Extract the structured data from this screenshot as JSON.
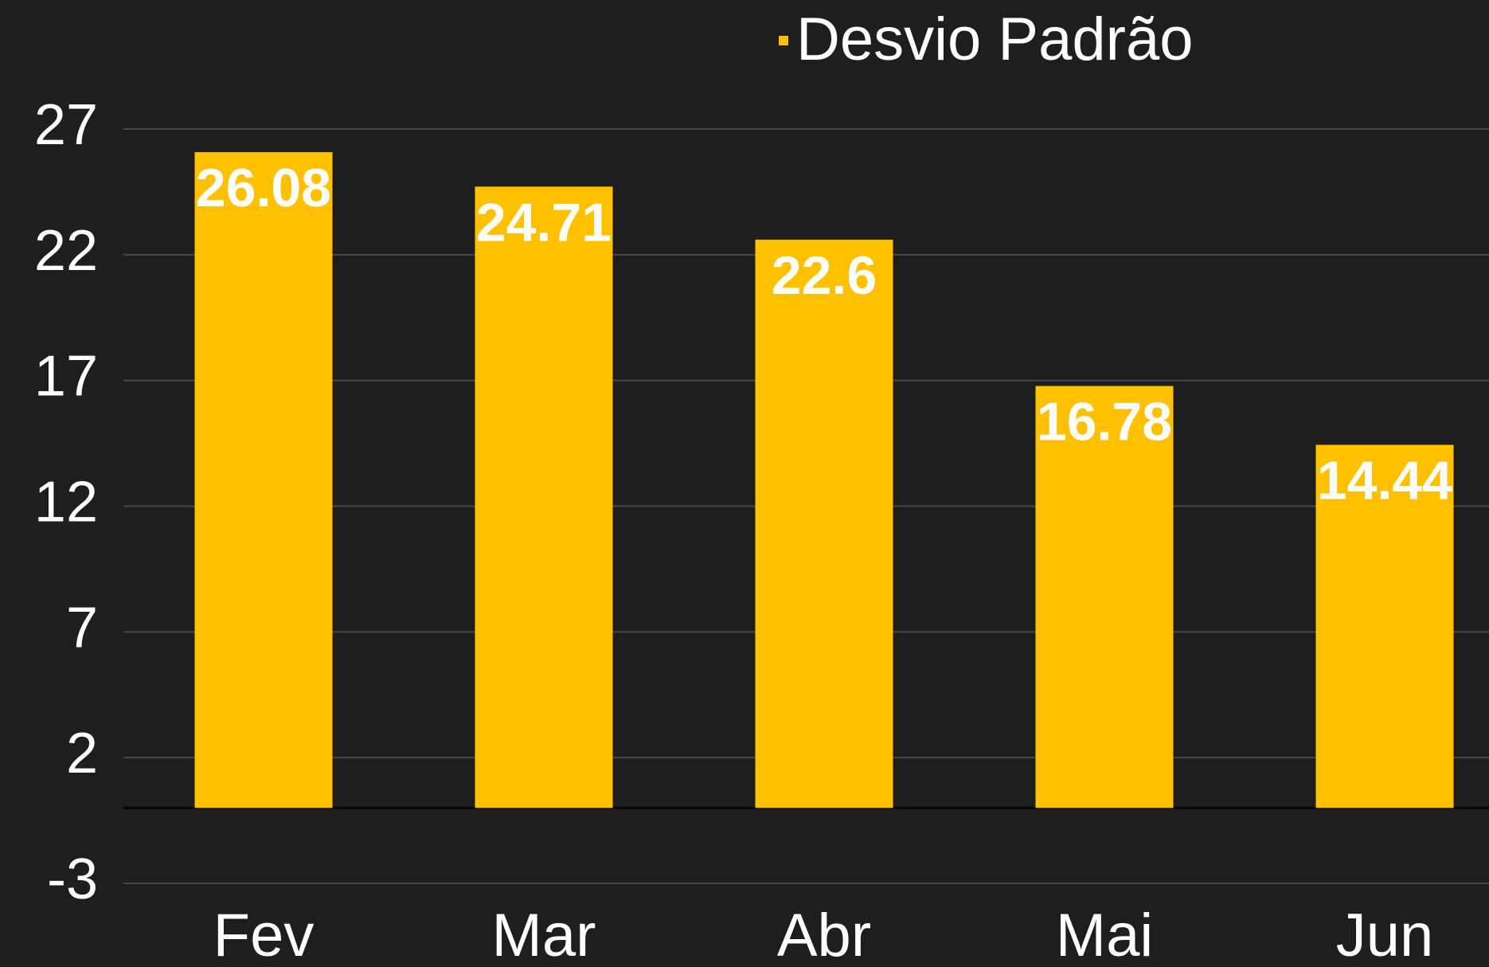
{
  "chart_data": {
    "type": "bar",
    "categories": [
      "Fev",
      "Mar",
      "Abr",
      "Mai",
      "Jun"
    ],
    "series": [
      {
        "name": "Desvio Padrão",
        "color": "#ffc000",
        "values": [
          26.08,
          24.71,
          22.6,
          16.78,
          14.44
        ]
      }
    ],
    "ylim": [
      -3,
      27
    ],
    "yticks": [
      -3,
      2,
      7,
      12,
      17,
      22,
      27
    ],
    "grid": true,
    "legend": "top"
  }
}
